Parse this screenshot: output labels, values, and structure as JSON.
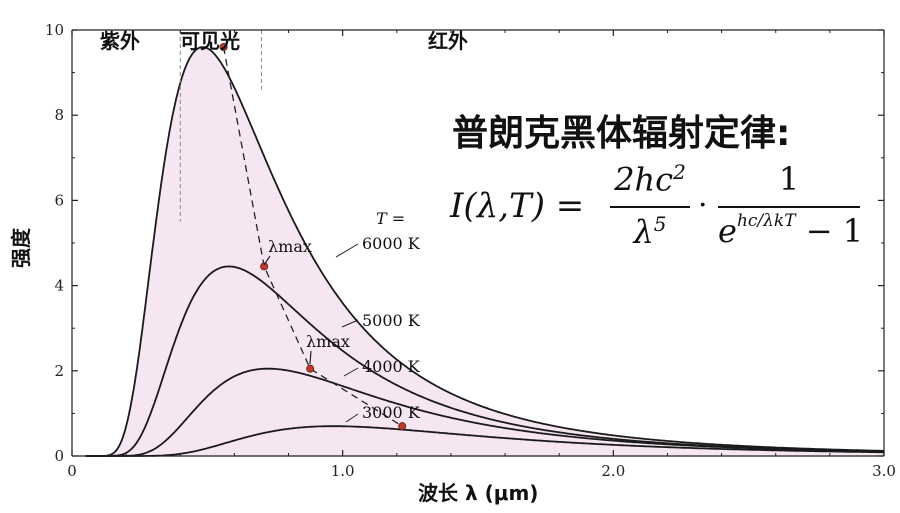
{
  "chart_data": {
    "type": "line",
    "xlabel": "波长 λ (μm)",
    "ylabel": "强度",
    "xlim": [
      0,
      3.0
    ],
    "ylim": [
      0,
      10
    ],
    "xticks": [
      "0",
      "1.0",
      "2.0",
      "3.0"
    ],
    "yticks": [
      "0",
      "2",
      "4",
      "6",
      "8",
      "10"
    ],
    "regions": [
      {
        "label": "紫外",
        "x_range": [
          0,
          0.4
        ]
      },
      {
        "label": "可见光",
        "x_range": [
          0.4,
          0.7
        ]
      },
      {
        "label": "红外",
        "x_range": [
          0.7,
          3.0
        ]
      }
    ],
    "temperature_prefix": "T =",
    "series": [
      {
        "name": "6000 K",
        "temperature": 6000,
        "peak": {
          "x": 0.56,
          "y": 9.6
        }
      },
      {
        "name": "5000 K",
        "temperature": 5000,
        "peak": {
          "x": 0.71,
          "y": 4.45
        }
      },
      {
        "name": "4000 K",
        "temperature": 4000,
        "peak": {
          "x": 0.88,
          "y": 2.05
        }
      },
      {
        "name": "3000 K",
        "temperature": 3000,
        "peak": {
          "x": 1.22,
          "y": 0.7
        }
      }
    ],
    "annotations": [
      "λmax",
      "λmax"
    ],
    "spectrum_colors": [
      "#4b47a6",
      "#3fa75a",
      "#a4cf35",
      "#f4ea2f",
      "#f59a2c",
      "#e8403a"
    ]
  },
  "formula": {
    "title": "普朗克黑体辐射定律:",
    "lhs": "I(λ,T) =",
    "num1": "2hc",
    "num1_sup": "2",
    "den1": "λ",
    "den1_sup": "5",
    "dot": "·",
    "num2": "1",
    "den2_base": "e",
    "den2_exp": "hc/λkT",
    "den2_tail": " − 1"
  }
}
